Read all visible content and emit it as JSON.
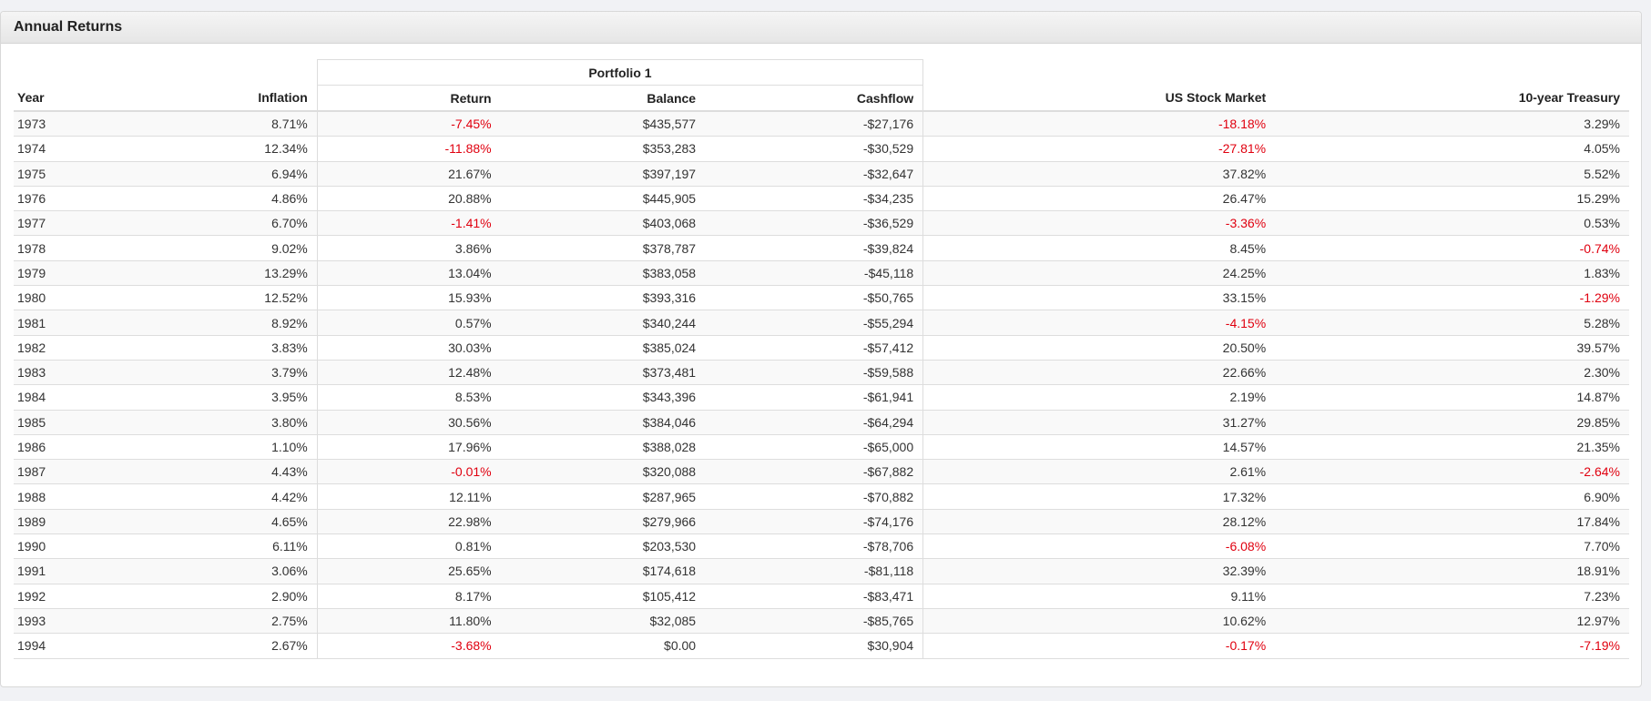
{
  "panel": {
    "title": "Annual Returns"
  },
  "table": {
    "group_header": "Portfolio 1",
    "columns": [
      "Year",
      "Inflation",
      "Return",
      "Balance",
      "Cashflow",
      "US Stock Market",
      "10-year Treasury"
    ],
    "rows": [
      [
        "1973",
        "8.71%",
        "-7.45%",
        "$435,577",
        "-$27,176",
        "-18.18%",
        "3.29%"
      ],
      [
        "1974",
        "12.34%",
        "-11.88%",
        "$353,283",
        "-$30,529",
        "-27.81%",
        "4.05%"
      ],
      [
        "1975",
        "6.94%",
        "21.67%",
        "$397,197",
        "-$32,647",
        "37.82%",
        "5.52%"
      ],
      [
        "1976",
        "4.86%",
        "20.88%",
        "$445,905",
        "-$34,235",
        "26.47%",
        "15.29%"
      ],
      [
        "1977",
        "6.70%",
        "-1.41%",
        "$403,068",
        "-$36,529",
        "-3.36%",
        "0.53%"
      ],
      [
        "1978",
        "9.02%",
        "3.86%",
        "$378,787",
        "-$39,824",
        "8.45%",
        "-0.74%"
      ],
      [
        "1979",
        "13.29%",
        "13.04%",
        "$383,058",
        "-$45,118",
        "24.25%",
        "1.83%"
      ],
      [
        "1980",
        "12.52%",
        "15.93%",
        "$393,316",
        "-$50,765",
        "33.15%",
        "-1.29%"
      ],
      [
        "1981",
        "8.92%",
        "0.57%",
        "$340,244",
        "-$55,294",
        "-4.15%",
        "5.28%"
      ],
      [
        "1982",
        "3.83%",
        "30.03%",
        "$385,024",
        "-$57,412",
        "20.50%",
        "39.57%"
      ],
      [
        "1983",
        "3.79%",
        "12.48%",
        "$373,481",
        "-$59,588",
        "22.66%",
        "2.30%"
      ],
      [
        "1984",
        "3.95%",
        "8.53%",
        "$343,396",
        "-$61,941",
        "2.19%",
        "14.87%"
      ],
      [
        "1985",
        "3.80%",
        "30.56%",
        "$384,046",
        "-$64,294",
        "31.27%",
        "29.85%"
      ],
      [
        "1986",
        "1.10%",
        "17.96%",
        "$388,028",
        "-$65,000",
        "14.57%",
        "21.35%"
      ],
      [
        "1987",
        "4.43%",
        "-0.01%",
        "$320,088",
        "-$67,882",
        "2.61%",
        "-2.64%"
      ],
      [
        "1988",
        "4.42%",
        "12.11%",
        "$287,965",
        "-$70,882",
        "17.32%",
        "6.90%"
      ],
      [
        "1989",
        "4.65%",
        "22.98%",
        "$279,966",
        "-$74,176",
        "28.12%",
        "17.84%"
      ],
      [
        "1990",
        "6.11%",
        "0.81%",
        "$203,530",
        "-$78,706",
        "-6.08%",
        "7.70%"
      ],
      [
        "1991",
        "3.06%",
        "25.65%",
        "$174,618",
        "-$81,118",
        "32.39%",
        "18.91%"
      ],
      [
        "1992",
        "2.90%",
        "8.17%",
        "$105,412",
        "-$83,471",
        "9.11%",
        "7.23%"
      ],
      [
        "1993",
        "2.75%",
        "11.80%",
        "$32,085",
        "-$85,765",
        "10.62%",
        "12.97%"
      ],
      [
        "1994",
        "2.67%",
        "-3.68%",
        "$0.00",
        "$30,904",
        "-0.17%",
        "-7.19%"
      ]
    ]
  },
  "colors": {
    "negative": "#e0000f",
    "border": "#dddddd",
    "stripe": "#f9f9f9"
  }
}
